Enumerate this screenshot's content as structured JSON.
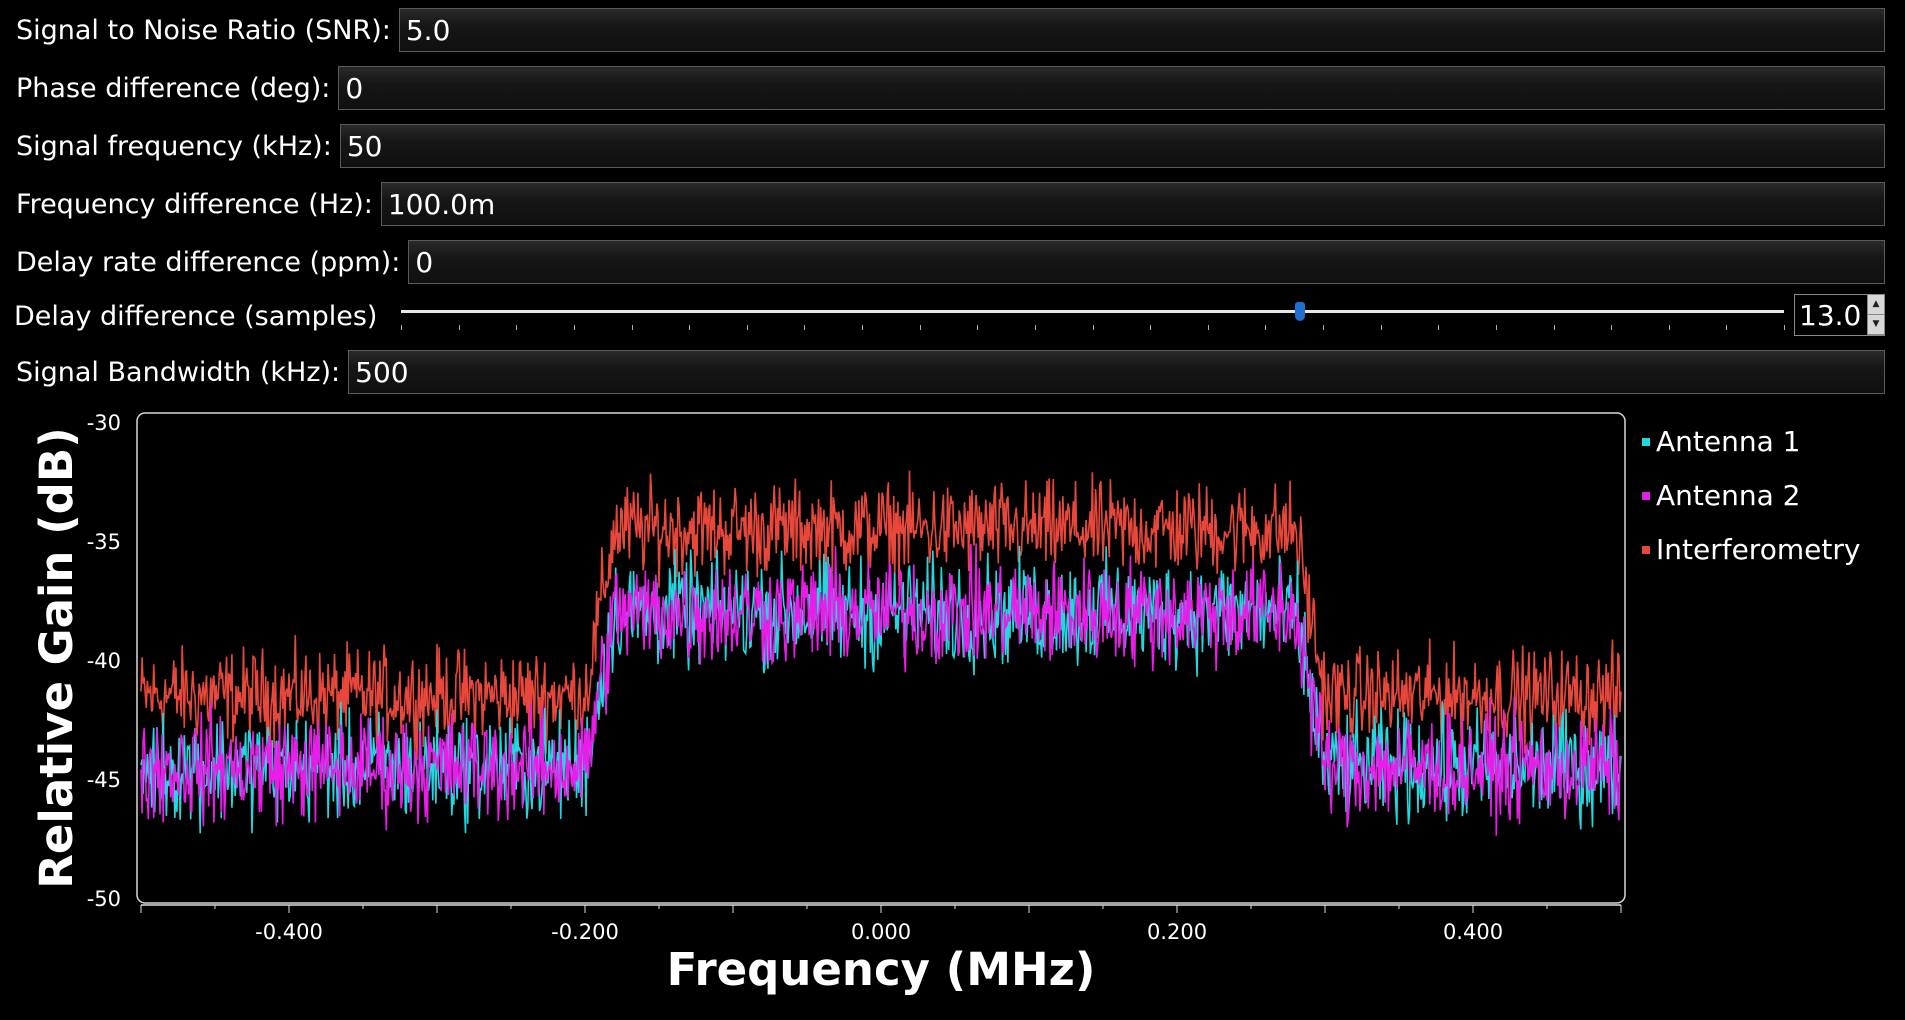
{
  "params": [
    {
      "id": "snr",
      "label": "Signal to Noise Ratio (SNR):",
      "value": "5.0"
    },
    {
      "id": "phase",
      "label": "Phase difference (deg):",
      "value": "0"
    },
    {
      "id": "sigfreq",
      "label": "Signal frequency (kHz):",
      "value": "50"
    },
    {
      "id": "freqdiff",
      "label": "Frequency difference (Hz):",
      "value": "100.0m"
    },
    {
      "id": "delayrate",
      "label": "Delay rate difference (ppm):",
      "value": "0"
    }
  ],
  "delay": {
    "label": "Delay difference (samples)",
    "value": "13.0",
    "fraction": 0.65
  },
  "bandwidth": {
    "label": "Signal Bandwidth (kHz):",
    "value": "500"
  },
  "colors": {
    "antenna1": "#22d8e0",
    "antenna2": "#e81ee8",
    "interferometry": "#e8483c"
  },
  "chart_data": {
    "type": "line",
    "xlabel": "Frequency (MHz)",
    "ylabel": "Relative Gain (dB)",
    "xlim": [
      -0.5,
      0.5
    ],
    "ylim": [
      -50,
      -30
    ],
    "xticks": [
      "-0.400",
      "-0.200",
      "0.000",
      "0.200",
      "0.400"
    ],
    "xtick_values": [
      -0.4,
      -0.2,
      0.0,
      0.2,
      0.4
    ],
    "yticks": [
      "-30",
      "-35",
      "-40",
      "-45",
      "-50"
    ],
    "ytick_values": [
      -30,
      -35,
      -40,
      -45,
      -50
    ],
    "legend_position": "right",
    "series": [
      {
        "name": "Antenna 1",
        "color": "#22d8e0",
        "x": [
          -0.5,
          -0.2,
          -0.18,
          0.28,
          0.3,
          0.5
        ],
        "y": [
          -44.5,
          -44.5,
          -38,
          -38,
          -44.5,
          -44.5
        ]
      },
      {
        "name": "Antenna 2",
        "color": "#e81ee8",
        "x": [
          -0.5,
          -0.2,
          -0.18,
          0.28,
          0.3,
          0.5
        ],
        "y": [
          -44.5,
          -44.5,
          -38,
          -38,
          -44.5,
          -44.5
        ]
      },
      {
        "name": "Interferometry",
        "color": "#e8483c",
        "x": [
          -0.5,
          -0.2,
          -0.18,
          0.28,
          0.3,
          0.5
        ],
        "y": [
          -41.5,
          -41.5,
          -34.5,
          -34.5,
          -41.5,
          -41.5
        ]
      }
    ]
  }
}
